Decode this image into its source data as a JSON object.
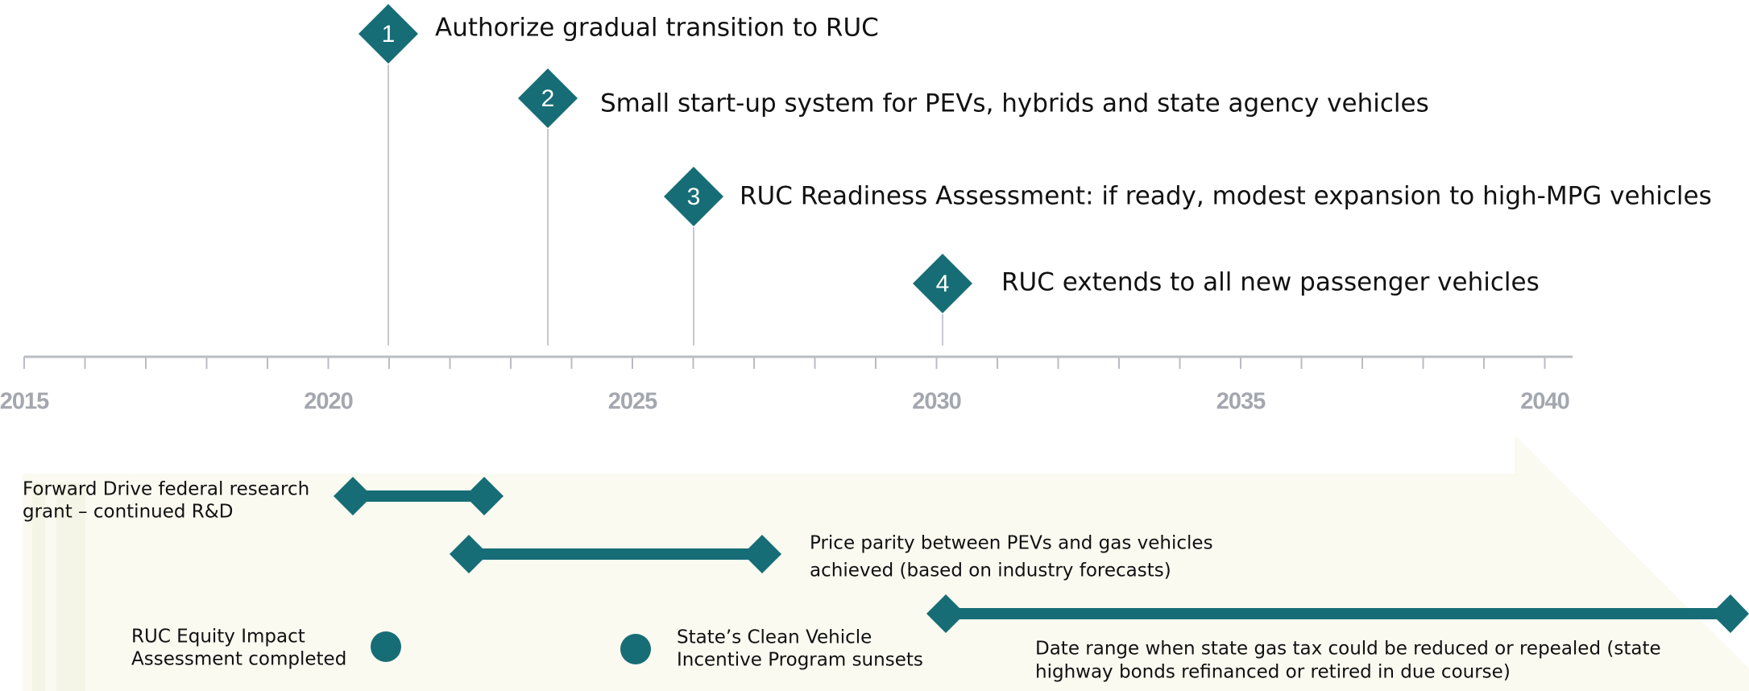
{
  "milestones": [
    {
      "number": "1",
      "label": "Authorize gradual transition to RUC"
    },
    {
      "number": "2",
      "label": "Small start-up system for PEVs, hybrids and state agency vehicles"
    },
    {
      "number": "3",
      "label": "RUC Readiness Assessment: if ready, modest expansion to high-MPG vehicles"
    },
    {
      "number": "4",
      "label": "RUC extends to all new passenger vehicles"
    }
  ],
  "axis": {
    "years": [
      "2015",
      "2020",
      "2025",
      "2030",
      "2035",
      "2040"
    ]
  },
  "ranges": [
    {
      "lines": [
        "Forward Drive federal research",
        "grant – continued R&D"
      ]
    },
    {
      "lines": [
        "Price parity between PEVs and gas vehicles",
        "achieved (based on industry forecasts)"
      ]
    },
    {
      "lines": [
        "Date range when state gas tax could be reduced or repealed (state",
        "highway bonds refinanced or retired in due course)"
      ]
    }
  ],
  "events": [
    {
      "lines": [
        "RUC Equity Impact",
        "Assessment completed"
      ]
    },
    {
      "lines": [
        "State’s Clean Vehicle",
        "Incentive Program sunsets"
      ]
    }
  ]
}
